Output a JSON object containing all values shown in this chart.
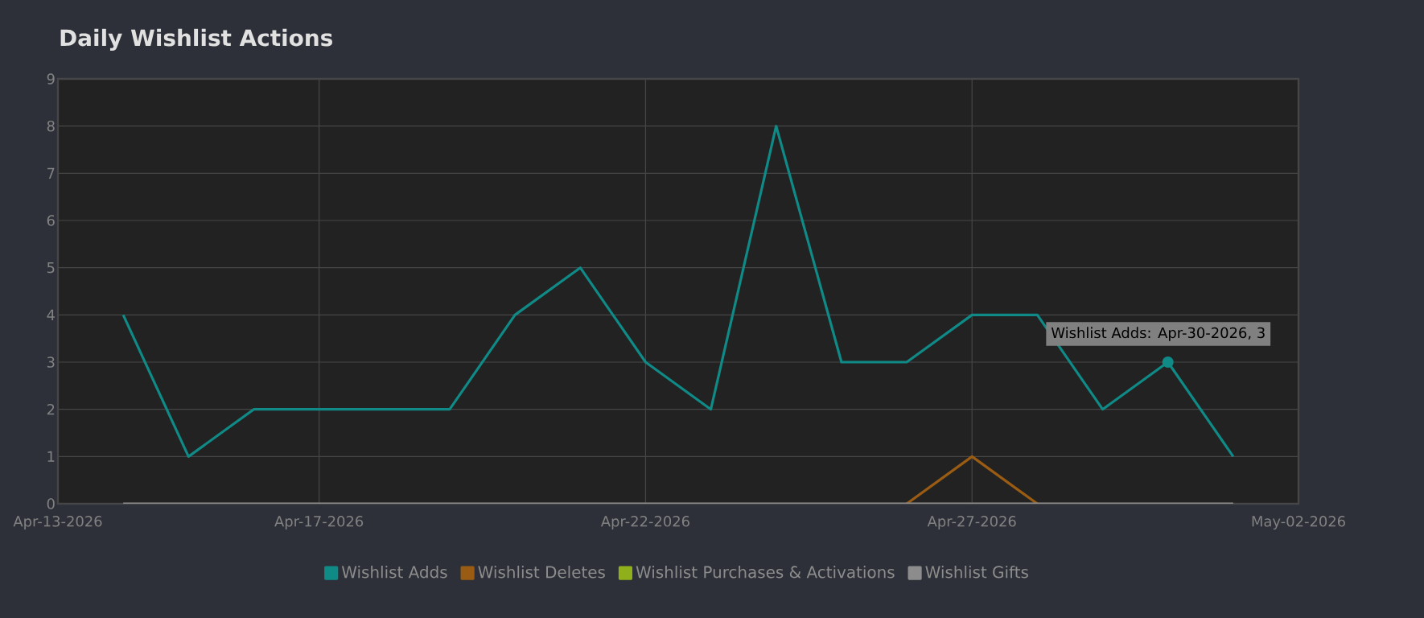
{
  "chart_data": {
    "type": "line",
    "title": "Daily Wishlist Actions",
    "x": [
      "2026-04-14",
      "2026-04-15",
      "2026-04-16",
      "2026-04-17",
      "2026-04-18",
      "2026-04-19",
      "2026-04-20",
      "2026-04-21",
      "2026-04-22",
      "2026-04-23",
      "2026-04-24",
      "2026-04-25",
      "2026-04-26",
      "2026-04-27",
      "2026-04-28",
      "2026-04-29",
      "2026-04-30",
      "2026-05-01"
    ],
    "series": [
      {
        "name": "Wishlist Adds",
        "color": "#0f8a86",
        "values": [
          4,
          1,
          2,
          2,
          2,
          2,
          4,
          5,
          3,
          2,
          8,
          3,
          3,
          4,
          4,
          2,
          3,
          1
        ]
      },
      {
        "name": "Wishlist Deletes",
        "color": "#9a5c12",
        "values": [
          null,
          null,
          null,
          null,
          null,
          null,
          null,
          null,
          null,
          null,
          null,
          null,
          0,
          1,
          0,
          null,
          null,
          null
        ]
      },
      {
        "name": "Wishlist Purchases & Activations",
        "color": "#8fb01a",
        "values": [
          null,
          null,
          null,
          null,
          null,
          null,
          null,
          null,
          null,
          null,
          null,
          null,
          null,
          null,
          null,
          null,
          null,
          null
        ]
      },
      {
        "name": "Wishlist Gifts",
        "color": "#8c8c8c",
        "values": [
          0,
          0,
          0,
          0,
          0,
          0,
          0,
          0,
          0,
          0,
          0,
          0,
          0,
          0,
          0,
          0,
          0,
          0
        ]
      }
    ],
    "xlim": [
      "2026-04-13",
      "2026-05-02"
    ],
    "xticks": [
      {
        "value": "2026-04-13",
        "label": "Apr-13-2026"
      },
      {
        "value": "2026-04-17",
        "label": "Apr-17-2026"
      },
      {
        "value": "2026-04-22",
        "label": "Apr-22-2026"
      },
      {
        "value": "2026-04-27",
        "label": "Apr-27-2026"
      },
      {
        "value": "2026-05-02",
        "label": "May-02-2026"
      }
    ],
    "ylim": [
      0,
      9
    ],
    "yticks": [
      0,
      1,
      2,
      3,
      4,
      5,
      6,
      7,
      8,
      9
    ],
    "grid": true,
    "legend": "bottom",
    "marker": "none",
    "line_style": "solid",
    "annotations": [
      {
        "text": "Wishlist Adds: Apr-30-2026, 3",
        "x": "2026-04-30",
        "y": 3
      }
    ]
  }
}
